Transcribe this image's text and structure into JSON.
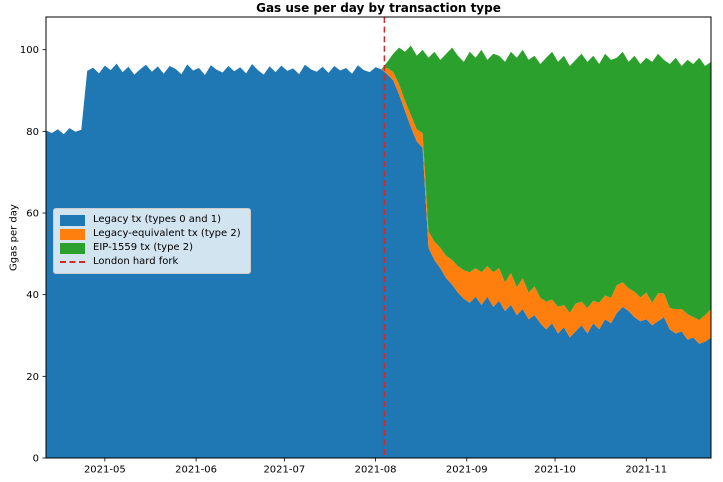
{
  "chart_data": {
    "type": "area",
    "stacked": true,
    "title": "Gas use per day by transaction type",
    "ylabel": "Ggas per day",
    "xlabel": "",
    "grid": false,
    "ylim": [
      0,
      108
    ],
    "yticks": [
      0,
      20,
      40,
      60,
      80,
      100
    ],
    "x_axis": {
      "start_date": "2021-04-11",
      "end_date": "2021-11-23",
      "points_every_days": 2,
      "total_days": 226,
      "ticks": [
        {
          "day": 20,
          "label": "2021-05"
        },
        {
          "day": 51,
          "label": "2021-06"
        },
        {
          "day": 81,
          "label": "2021-07"
        },
        {
          "day": 112,
          "label": "2021-08"
        },
        {
          "day": 143,
          "label": "2021-09"
        },
        {
          "day": 173,
          "label": "2021-10"
        },
        {
          "day": 204,
          "label": "2021-11"
        }
      ]
    },
    "series": [
      {
        "name": "Legacy tx (types 0 and 1)",
        "color": "#1f77b4",
        "values": [
          80.2,
          79.6,
          80.5,
          79.3,
          80.8,
          79.9,
          80.4,
          94.8,
          95.6,
          94.2,
          96.1,
          95.0,
          96.6,
          94.5,
          95.8,
          93.9,
          95.2,
          96.3,
          94.6,
          95.9,
          94.1,
          96.0,
          95.3,
          94.0,
          96.4,
          94.9,
          95.5,
          93.8,
          96.2,
          95.1,
          94.4,
          96.0,
          94.7,
          95.7,
          94.2,
          96.5,
          95.0,
          93.9,
          95.9,
          94.5,
          96.1,
          94.8,
          95.4,
          94.0,
          96.3,
          95.2,
          94.6,
          95.8,
          94.3,
          96.0,
          94.9,
          95.5,
          94.1,
          96.2,
          95.0,
          94.5,
          95.7,
          95.2,
          94.0,
          92.5,
          89.0,
          85.0,
          81.0,
          77.5,
          76.0,
          51.5,
          48.5,
          46.5,
          44.0,
          42.5,
          40.5,
          39.0,
          38.0,
          39.5,
          37.5,
          39.5,
          37.0,
          38.5,
          36.0,
          37.5,
          35.0,
          36.5,
          34.0,
          35.0,
          33.0,
          31.5,
          33.0,
          30.5,
          32.0,
          29.5,
          31.0,
          32.5,
          30.5,
          33.0,
          31.5,
          34.0,
          33.0,
          35.5,
          37.0,
          36.0,
          34.5,
          33.5,
          34.0,
          32.5,
          33.5,
          34.5,
          31.5,
          30.5,
          31.0,
          29.0,
          29.5,
          28.0,
          28.5,
          29.5
        ]
      },
      {
        "name": "Legacy-equivalent tx (type 2)",
        "color": "#ff7f0e",
        "values": [
          0,
          0,
          0,
          0,
          0,
          0,
          0,
          0,
          0,
          0,
          0,
          0,
          0,
          0,
          0,
          0,
          0,
          0,
          0,
          0,
          0,
          0,
          0,
          0,
          0,
          0,
          0,
          0,
          0,
          0,
          0,
          0,
          0,
          0,
          0,
          0,
          0,
          0,
          0,
          0,
          0,
          0,
          0,
          0,
          0,
          0,
          0,
          0,
          0,
          0,
          0,
          0,
          0,
          0,
          0,
          0,
          0,
          0,
          1.5,
          2.0,
          2.5,
          2.5,
          3.0,
          3.0,
          3.5,
          4.0,
          4.5,
          5.0,
          5.5,
          6.0,
          6.5,
          7.0,
          7.5,
          7.0,
          8.0,
          7.5,
          8.5,
          8.0,
          7.0,
          7.8,
          6.8,
          7.5,
          6.5,
          7.0,
          6.2,
          6.8,
          5.8,
          6.5,
          5.5,
          6.0,
          6.8,
          5.8,
          6.2,
          5.5,
          6.5,
          5.8,
          6.2,
          6.8,
          6.0,
          5.5,
          6.2,
          5.8,
          6.5,
          5.5,
          6.8,
          5.8,
          5.2,
          6.0,
          5.5,
          6.2,
          5.0,
          5.8,
          6.5,
          7.0
        ]
      },
      {
        "name": "EIP-1559 tx (type 2)",
        "color": "#2ca02c",
        "values": [
          0,
          0,
          0,
          0,
          0,
          0,
          0,
          0,
          0,
          0,
          0,
          0,
          0,
          0,
          0,
          0,
          0,
          0,
          0,
          0,
          0,
          0,
          0,
          0,
          0,
          0,
          0,
          0,
          0,
          0,
          0,
          0,
          0,
          0,
          0,
          0,
          0,
          0,
          0,
          0,
          0,
          0,
          0,
          0,
          0,
          0,
          0,
          0,
          0,
          0,
          0,
          0,
          0,
          0,
          0,
          0,
          0,
          0,
          1.5,
          4.5,
          9.0,
          12.0,
          17.0,
          18.0,
          20.5,
          42.5,
          46.5,
          46.0,
          49.5,
          52.0,
          51.5,
          51.0,
          54.0,
          51.5,
          54.5,
          50.5,
          53.5,
          52.0,
          54.0,
          54.2,
          56.2,
          56.0,
          57.0,
          56.5,
          57.3,
          59.7,
          60.7,
          60.0,
          61.0,
          60.5,
          59.7,
          60.7,
          60.3,
          60.0,
          58.5,
          59.2,
          58.3,
          55.7,
          56.5,
          55.5,
          57.8,
          57.2,
          57.5,
          59.0,
          58.7,
          57.2,
          59.8,
          61.5,
          59.5,
          62.3,
          62.0,
          64.2,
          61.0,
          60.5
        ]
      }
    ],
    "vline": {
      "day": 115,
      "label": "London hard fork",
      "color": "#d62728",
      "linestyle": "dashed"
    },
    "legend": {
      "position": "center-left",
      "items": [
        {
          "label": "Legacy tx (types 0 and 1)",
          "swatch": "patch",
          "color": "#1f77b4"
        },
        {
          "label": "Legacy-equivalent tx (type 2)",
          "swatch": "patch",
          "color": "#ff7f0e"
        },
        {
          "label": "EIP-1559 tx (type 2)",
          "swatch": "patch",
          "color": "#2ca02c"
        },
        {
          "label": "London hard fork",
          "swatch": "dashed-line",
          "color": "#d62728"
        }
      ]
    },
    "axis_color": "#000000",
    "plot_background": "#ffffff"
  }
}
